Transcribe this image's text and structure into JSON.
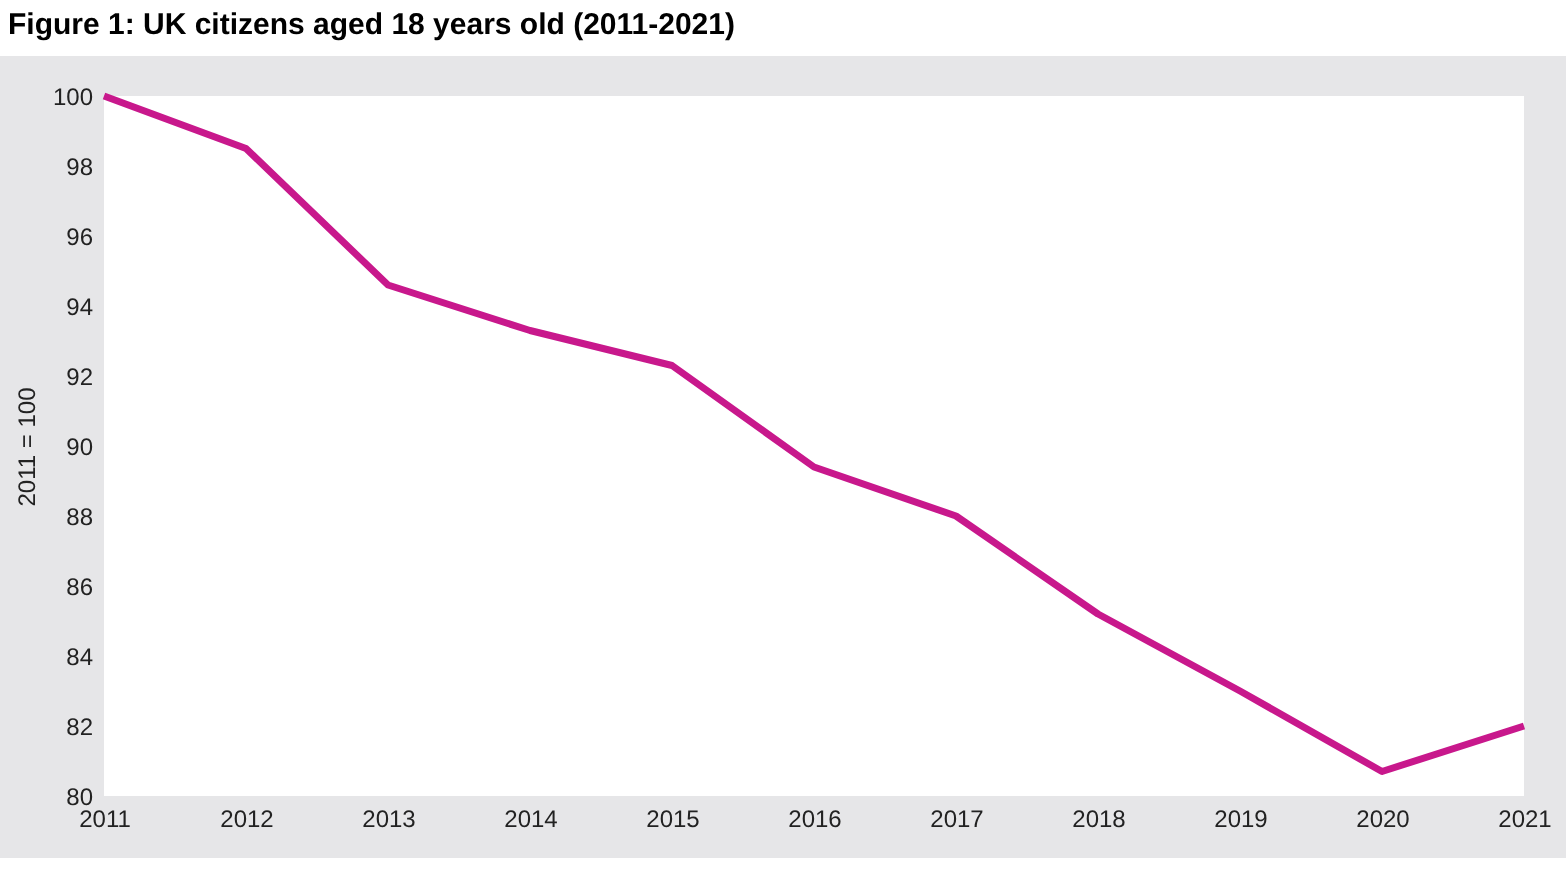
{
  "chart_data": {
    "type": "line",
    "title": "Figure 1: UK citizens aged 18 years old (2011-2021)",
    "ylabel": "2011 = 100",
    "x": [
      2011,
      2012,
      2013,
      2014,
      2015,
      2016,
      2017,
      2018,
      2019,
      2020,
      2021
    ],
    "series": [
      {
        "color": "#c8188c",
        "values": [
          100,
          98.5,
          94.6,
          93.3,
          92.3,
          89.4,
          88.0,
          85.2,
          83.0,
          80.7,
          82.0
        ]
      }
    ],
    "xlim": [
      2011,
      2021
    ],
    "xticks": [
      2011,
      2012,
      2013,
      2014,
      2015,
      2016,
      2017,
      2018,
      2019,
      2020,
      2021
    ],
    "ylim": [
      80,
      100
    ],
    "yticks": [
      80,
      82,
      84,
      86,
      88,
      90,
      92,
      94,
      96,
      98,
      100
    ],
    "grid": false,
    "marker": "none",
    "line_style": "solid"
  }
}
